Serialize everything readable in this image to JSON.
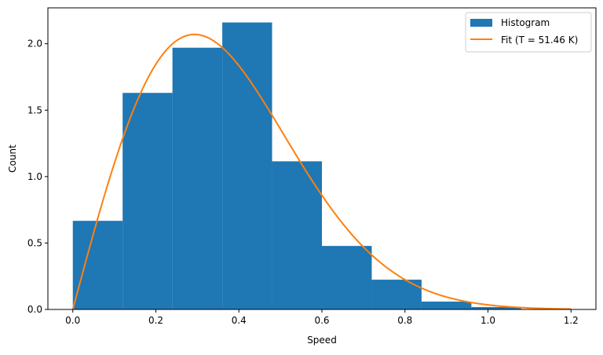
{
  "chart_data": {
    "type": "bar",
    "title": "",
    "xlabel": "Speed",
    "ylabel": "Count",
    "xlim": [
      -0.06,
      1.26
    ],
    "ylim": [
      0.0,
      2.27
    ],
    "xticks": [
      "0.0",
      "0.2",
      "0.4",
      "0.6",
      "0.8",
      "1.0",
      "1.2"
    ],
    "xtick_values": [
      0.0,
      0.2,
      0.4,
      0.6,
      0.8,
      1.0,
      1.2
    ],
    "yticks": [
      "0.0",
      "0.5",
      "1.0",
      "1.5",
      "2.0"
    ],
    "ytick_values": [
      0.0,
      0.5,
      1.0,
      1.5,
      2.0
    ],
    "grid": false,
    "legend_position": "upper right",
    "histogram": {
      "name": "Histogram",
      "color": "#1f77b4",
      "bin_edges": [
        0.0,
        0.12,
        0.24,
        0.36,
        0.48,
        0.6,
        0.72,
        0.84,
        0.96,
        1.08
      ],
      "values": [
        0.667,
        1.63,
        1.97,
        2.16,
        1.115,
        0.478,
        0.224,
        0.059,
        0.018
      ]
    },
    "fit": {
      "name": "Fit (T = 51.46 K)",
      "type": "line",
      "color": "#ff7f0e",
      "model": "2D Maxwell-Boltzmann: f(v) = v/a^2 * exp(-v^2/(2a^2))",
      "scale_a": 0.293,
      "x_range": [
        0.0,
        1.2
      ],
      "peak": {
        "x": 0.293,
        "y": 2.06
      }
    }
  },
  "legend": {
    "items": [
      {
        "label": "Histogram",
        "color": "#1f77b4",
        "kind": "patch"
      },
      {
        "label": "Fit (T = 51.46 K)",
        "color": "#ff7f0e",
        "kind": "line"
      }
    ]
  }
}
